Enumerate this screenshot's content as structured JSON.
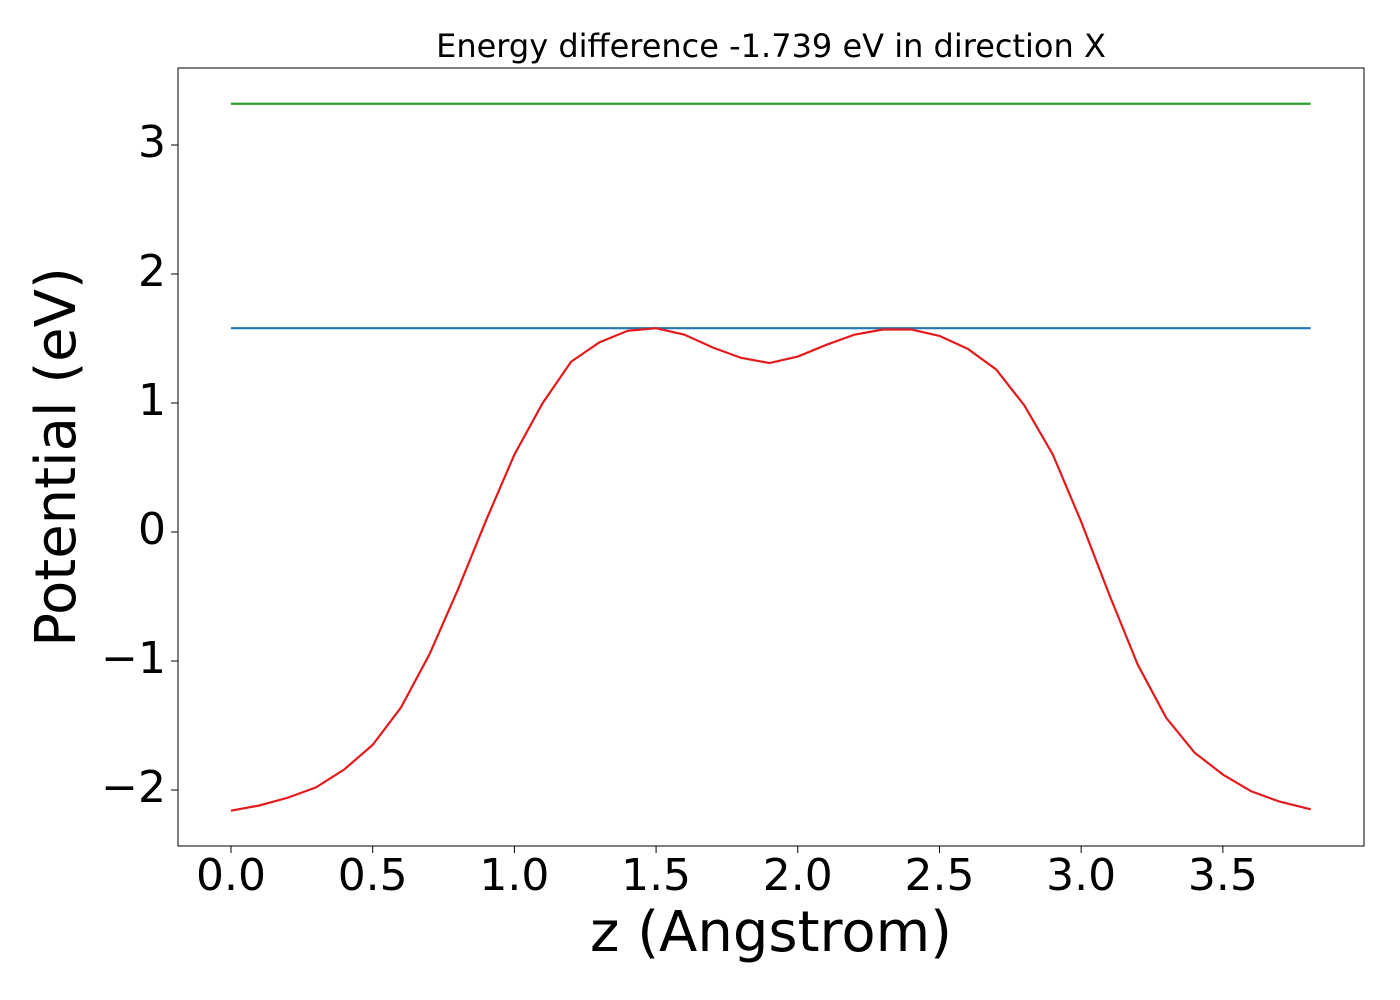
{
  "chart_data": {
    "type": "line",
    "title": "Energy difference -1.739 eV in direction X",
    "x_label": "z (Angstrom)",
    "y_label": "Potential (eV)",
    "xlim": [
      -0.187,
      3.998
    ],
    "ylim": [
      -2.434,
      3.597
    ],
    "xticks": [
      {
        "value": 0,
        "label": "0.0"
      },
      0.5,
      {
        "value": 1,
        "label": "1.0"
      },
      1.5,
      {
        "value": 2,
        "label": "2.0"
      },
      2.5,
      {
        "value": 3,
        "label": "3.0"
      },
      3.5
    ],
    "yticks": [
      {
        "value": -2,
        "label": "−2"
      },
      {
        "value": -1,
        "label": "−1"
      },
      0,
      1,
      2,
      3
    ],
    "series": [
      {
        "color": "#1f77b4",
        "x": [
          0,
          3.81
        ],
        "values": [
          1.58,
          1.58
        ]
      },
      {
        "color": "#2ca02c",
        "x": [
          0,
          3.81
        ],
        "values": [
          3.32,
          3.32
        ]
      },
      {
        "color": "#e31a1c",
        "x": [
          0,
          0.1,
          0.2,
          0.3,
          0.4,
          0.5,
          0.6,
          0.7,
          0.8,
          0.9,
          1.0,
          1.1,
          1.2,
          1.3,
          1.4,
          1.5,
          1.6,
          1.7,
          1.8,
          1.9,
          2.0,
          2.1,
          2.2,
          2.3,
          2.4,
          2.5,
          2.6,
          2.7,
          2.8,
          2.9,
          3.0,
          3.1,
          3.2,
          3.3,
          3.4,
          3.5,
          3.6,
          3.7,
          3.81
        ],
        "values": [
          -2.16,
          -2.12,
          -2.06,
          -1.98,
          -1.84,
          -1.65,
          -1.36,
          -0.95,
          -0.45,
          0.09,
          0.6,
          1.0,
          1.32,
          1.47,
          1.56,
          1.58,
          1.53,
          1.43,
          1.35,
          1.31,
          1.36,
          1.45,
          1.53,
          1.57,
          1.57,
          1.52,
          1.42,
          1.26,
          0.98,
          0.6,
          0.08,
          -0.49,
          -1.03,
          -1.44,
          -1.71,
          -1.88,
          -2.01,
          -2.09,
          -2.15
        ]
      }
    ]
  }
}
